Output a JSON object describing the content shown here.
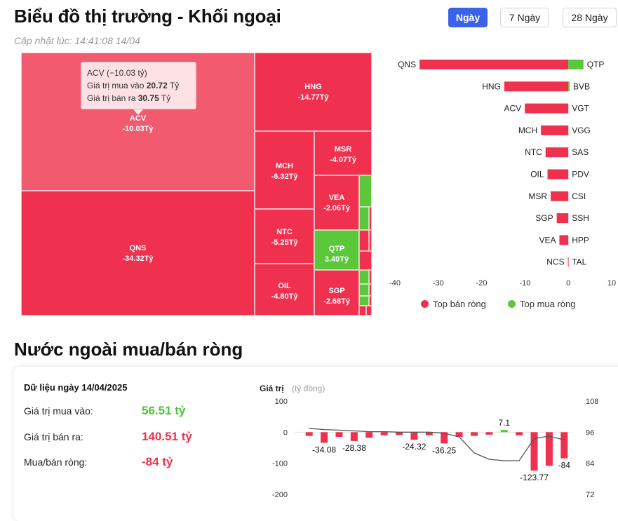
{
  "header": {
    "title": "Biểu đồ thị trường - Khối ngoại",
    "updated": "Cập nhật lúc: 14:41:08 14/04",
    "range_buttons": [
      "Ngày",
      "7 Ngày",
      "28 Ngày"
    ],
    "active_range": "Ngày"
  },
  "colors": {
    "sell": "#f0304f",
    "buy": "#5ac83a",
    "accent": "#3b63ea"
  },
  "tooltip": {
    "title": "ACV (−10.03 tỷ)",
    "buy_label": "Giá trị mua vào",
    "buy_value": "20.72",
    "sell_label": "Giá trị bán ra",
    "sell_value": "30.75",
    "unit": "Tỷ"
  },
  "treemap": {
    "tiles": [
      {
        "name": "ACV",
        "value": "-10.03Tỷ",
        "side": "sell"
      },
      {
        "name": "QNS",
        "value": "-34.32Tỷ",
        "side": "sell"
      },
      {
        "name": "HNG",
        "value": "-14.77Tỷ",
        "side": "sell"
      },
      {
        "name": "MCH",
        "value": "-6.32Tỷ",
        "side": "sell"
      },
      {
        "name": "NTC",
        "value": "-5.25Tỷ",
        "side": "sell"
      },
      {
        "name": "OIL",
        "value": "-4.80Tỷ",
        "side": "sell"
      },
      {
        "name": "MSR",
        "value": "-4.07Tỷ",
        "side": "sell"
      },
      {
        "name": "VEA",
        "value": "-2.06Tỷ",
        "side": "sell"
      },
      {
        "name": "QTP",
        "value": "3.49Tỷ",
        "side": "buy"
      },
      {
        "name": "SGP",
        "value": "-2.68Tỷ",
        "side": "sell"
      }
    ]
  },
  "chart_data": [
    {
      "type": "bar",
      "orientation": "horizontal",
      "sell_tickers": [
        "QNS",
        "HNG",
        "ACV",
        "MCH",
        "NTC",
        "OIL",
        "MSR",
        "SGP",
        "VEA",
        "NCS"
      ],
      "sell_values": [
        -34.32,
        -14.77,
        -10.03,
        -6.32,
        -5.25,
        -4.8,
        -4.07,
        -2.68,
        -2.06,
        -0.1
      ],
      "buy_tickers": [
        "QTP",
        "BVB",
        "VGT",
        "VGG",
        "SAS",
        "PDV",
        "CSI",
        "SSH",
        "HPP",
        "TAL"
      ],
      "buy_values": [
        3.49,
        0.3,
        0,
        0,
        0,
        0,
        0,
        0,
        0,
        0
      ],
      "xlim": [
        -40,
        10
      ],
      "xticks": [
        -40,
        -30,
        -20,
        -10,
        0,
        10
      ],
      "legend": [
        "Top bán ròng",
        "Top mua ròng"
      ],
      "legend_position": "bottom"
    },
    {
      "type": "bar",
      "title": "Giá trị",
      "ylabel_unit": "(tỷ đồng)",
      "values": [
        -12,
        -34.08,
        -15,
        -28.38,
        -18,
        -10,
        -9,
        -24.32,
        -10,
        -36.25,
        -15,
        -12,
        -8,
        7.1,
        -10,
        -123.77,
        -108,
        -84
      ],
      "labels": [
        "",
        "-34.08",
        "",
        "-28.38",
        "",
        "",
        "",
        "-24.32",
        "",
        "-36.25",
        "",
        "",
        "",
        "7.1",
        "",
        "-123.77",
        "",
        "-84"
      ],
      "ylim": [
        -200,
        100
      ],
      "yticks_left": [
        100,
        0,
        -100,
        -200
      ],
      "yticks_right": [
        108,
        96,
        84,
        72
      ],
      "line_values": [
        97.5,
        97,
        96.8,
        96.5,
        96.2,
        96.2,
        96.0,
        96.0,
        96.0,
        95.6,
        94.2,
        88,
        85.5,
        85.0,
        85.0,
        93.5,
        94.5,
        93
      ]
    }
  ],
  "net_flow": {
    "title": "Nước ngoài mua/bán ròng",
    "date_label": "Dữ liệu ngày 14/04/2025",
    "buy_label": "Giá trị mua vào:",
    "buy_value": "56.51 tỷ",
    "sell_label": "Giá trị bán ra:",
    "sell_value": "140.51 tỷ",
    "net_label": "Mua/bán ròng:",
    "net_value": "-84 tỷ"
  }
}
